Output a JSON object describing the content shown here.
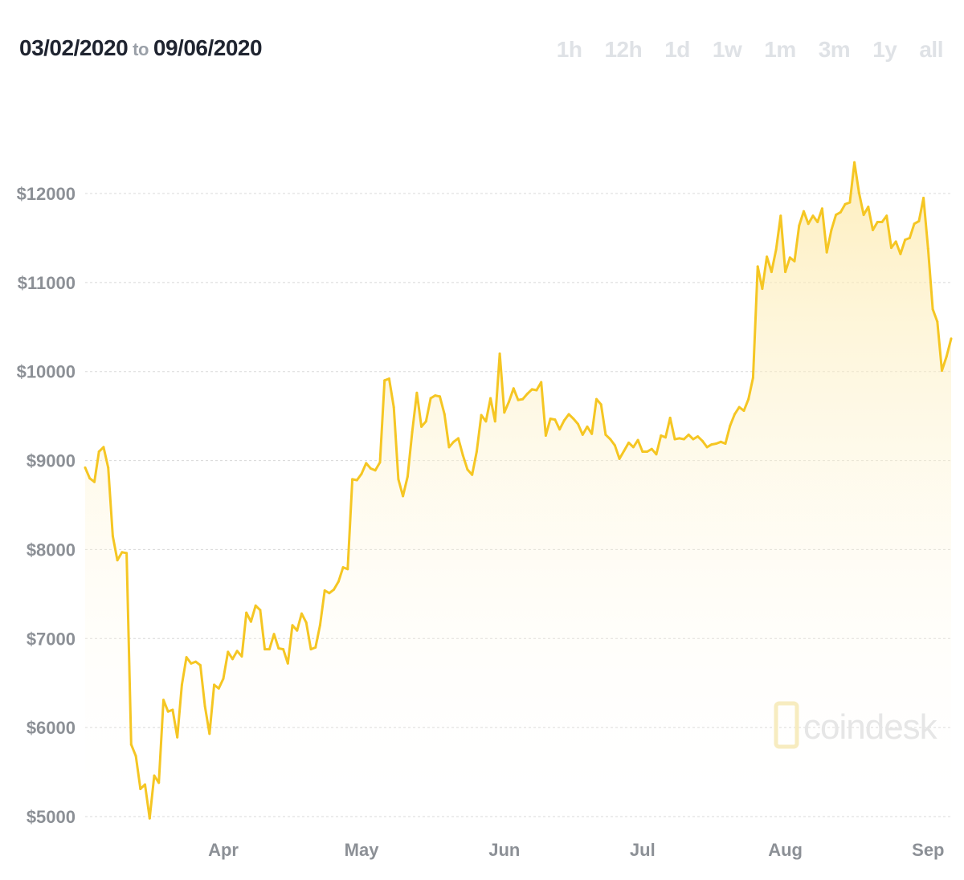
{
  "header": {
    "start_date": "03/02/2020",
    "to_label": "to",
    "end_date": "09/06/2020"
  },
  "time_ranges": [
    "1h",
    "12h",
    "1d",
    "1w",
    "1m",
    "3m",
    "1y",
    "all"
  ],
  "watermark": {
    "text": "coindesk"
  },
  "colors": {
    "line": "#f5c623",
    "fill_top": "#fde9a8",
    "grid": "#d8d8d8",
    "tick": "#8c9096"
  },
  "chart_data": {
    "type": "area",
    "title": "",
    "xlabel": "",
    "ylabel": "",
    "ylim": [
      4900,
      12500
    ],
    "yticks": [
      5000,
      6000,
      7000,
      8000,
      9000,
      10000,
      11000,
      12000
    ],
    "ytick_labels": [
      "$5000",
      "$6000",
      "$7000",
      "$8000",
      "$9000",
      "$10000",
      "$11000",
      "$12000"
    ],
    "xlim": [
      "2020-03-02",
      "2020-09-06"
    ],
    "xticks": [
      "2020-04-01",
      "2020-05-01",
      "2020-06-01",
      "2020-07-01",
      "2020-08-01",
      "2020-09-01"
    ],
    "xtick_labels": [
      "Apr",
      "May",
      "Jun",
      "Jul",
      "Aug",
      "Sep"
    ],
    "grid": true,
    "series": [
      {
        "x": [
          "2020-03-02",
          "2020-03-03",
          "2020-03-04",
          "2020-03-05",
          "2020-03-06",
          "2020-03-07",
          "2020-03-08",
          "2020-03-09",
          "2020-03-10",
          "2020-03-11",
          "2020-03-12",
          "2020-03-13",
          "2020-03-14",
          "2020-03-15",
          "2020-03-16",
          "2020-03-17",
          "2020-03-18",
          "2020-03-19",
          "2020-03-20",
          "2020-03-21",
          "2020-03-22",
          "2020-03-23",
          "2020-03-24",
          "2020-03-25",
          "2020-03-26",
          "2020-03-27",
          "2020-03-28",
          "2020-03-29",
          "2020-03-30",
          "2020-03-31",
          "2020-04-01",
          "2020-04-02",
          "2020-04-03",
          "2020-04-04",
          "2020-04-05",
          "2020-04-06",
          "2020-04-07",
          "2020-04-08",
          "2020-04-09",
          "2020-04-10",
          "2020-04-11",
          "2020-04-12",
          "2020-04-13",
          "2020-04-14",
          "2020-04-15",
          "2020-04-16",
          "2020-04-17",
          "2020-04-18",
          "2020-04-19",
          "2020-04-20",
          "2020-04-21",
          "2020-04-22",
          "2020-04-23",
          "2020-04-24",
          "2020-04-25",
          "2020-04-26",
          "2020-04-27",
          "2020-04-28",
          "2020-04-29",
          "2020-04-30",
          "2020-05-01",
          "2020-05-02",
          "2020-05-03",
          "2020-05-04",
          "2020-05-05",
          "2020-05-06",
          "2020-05-07",
          "2020-05-08",
          "2020-05-09",
          "2020-05-10",
          "2020-05-11",
          "2020-05-12",
          "2020-05-13",
          "2020-05-14",
          "2020-05-15",
          "2020-05-16",
          "2020-05-17",
          "2020-05-18",
          "2020-05-19",
          "2020-05-20",
          "2020-05-21",
          "2020-05-22",
          "2020-05-23",
          "2020-05-24",
          "2020-05-25",
          "2020-05-26",
          "2020-05-27",
          "2020-05-28",
          "2020-05-29",
          "2020-05-30",
          "2020-05-31",
          "2020-06-01",
          "2020-06-02",
          "2020-06-03",
          "2020-06-04",
          "2020-06-05",
          "2020-06-06",
          "2020-06-07",
          "2020-06-08",
          "2020-06-09",
          "2020-06-10",
          "2020-06-11",
          "2020-06-12",
          "2020-06-13",
          "2020-06-14",
          "2020-06-15",
          "2020-06-16",
          "2020-06-17",
          "2020-06-18",
          "2020-06-19",
          "2020-06-20",
          "2020-06-21",
          "2020-06-22",
          "2020-06-23",
          "2020-06-24",
          "2020-06-25",
          "2020-06-26",
          "2020-06-27",
          "2020-06-28",
          "2020-06-29",
          "2020-06-30",
          "2020-07-01",
          "2020-07-02",
          "2020-07-03",
          "2020-07-04",
          "2020-07-05",
          "2020-07-06",
          "2020-07-07",
          "2020-07-08",
          "2020-07-09",
          "2020-07-10",
          "2020-07-11",
          "2020-07-12",
          "2020-07-13",
          "2020-07-14",
          "2020-07-15",
          "2020-07-16",
          "2020-07-17",
          "2020-07-18",
          "2020-07-19",
          "2020-07-20",
          "2020-07-21",
          "2020-07-22",
          "2020-07-23",
          "2020-07-24",
          "2020-07-25",
          "2020-07-26",
          "2020-07-27",
          "2020-07-28",
          "2020-07-29",
          "2020-07-30",
          "2020-07-31",
          "2020-08-01",
          "2020-08-02",
          "2020-08-03",
          "2020-08-04",
          "2020-08-05",
          "2020-08-06",
          "2020-08-07",
          "2020-08-08",
          "2020-08-09",
          "2020-08-10",
          "2020-08-11",
          "2020-08-12",
          "2020-08-13",
          "2020-08-14",
          "2020-08-15",
          "2020-08-16",
          "2020-08-17",
          "2020-08-18",
          "2020-08-19",
          "2020-08-20",
          "2020-08-21",
          "2020-08-22",
          "2020-08-23",
          "2020-08-24",
          "2020-08-25",
          "2020-08-26",
          "2020-08-27",
          "2020-08-28",
          "2020-08-29",
          "2020-08-30",
          "2020-08-31",
          "2020-09-01",
          "2020-09-02",
          "2020-09-03",
          "2020-09-04",
          "2020-09-05",
          "2020-09-06"
        ],
        "values": [
          8920,
          8800,
          8760,
          9100,
          9150,
          8920,
          8150,
          7880,
          7970,
          7960,
          5810,
          5680,
          5310,
          5360,
          4980,
          5460,
          5380,
          6310,
          6180,
          6200,
          5890,
          6480,
          6790,
          6720,
          6740,
          6700,
          6240,
          5930,
          6480,
          6440,
          6550,
          6850,
          6770,
          6860,
          6800,
          7290,
          7190,
          7370,
          7320,
          6880,
          6880,
          7050,
          6890,
          6880,
          6720,
          7150,
          7090,
          7280,
          7180,
          6880,
          6900,
          7150,
          7540,
          7510,
          7550,
          7640,
          7800,
          7780,
          8790,
          8780,
          8850,
          8970,
          8910,
          8890,
          8980,
          9900,
          9920,
          9600,
          8790,
          8600,
          8820,
          9320,
          9760,
          9380,
          9440,
          9700,
          9730,
          9720,
          9520,
          9150,
          9210,
          9250,
          9060,
          8900,
          8840,
          9100,
          9510,
          9440,
          9700,
          9440,
          10200,
          9540,
          9660,
          9810,
          9680,
          9690,
          9750,
          9800,
          9790,
          9880,
          9280,
          9470,
          9460,
          9350,
          9450,
          9520,
          9470,
          9410,
          9290,
          9380,
          9300,
          9690,
          9630,
          9290,
          9240,
          9170,
          9020,
          9110,
          9200,
          9150,
          9230,
          9100,
          9100,
          9130,
          9070,
          9280,
          9260,
          9480,
          9240,
          9250,
          9240,
          9290,
          9240,
          9270,
          9220,
          9150,
          9180,
          9190,
          9210,
          9190,
          9390,
          9520,
          9600,
          9560,
          9690,
          9930,
          11180,
          10930,
          11290,
          11120,
          11370,
          11750,
          11120,
          11280,
          11240,
          11640,
          11800,
          11660,
          11750,
          11680,
          11830,
          11340,
          11590,
          11760,
          11790,
          11880,
          11900,
          12350,
          12010,
          11760,
          11850,
          11590,
          11680,
          11680,
          11750,
          11390,
          11460,
          11320,
          11480,
          11500,
          11660,
          11690,
          11950,
          11380,
          10700,
          10560,
          10010,
          10170,
          10370
        ]
      }
    ]
  }
}
